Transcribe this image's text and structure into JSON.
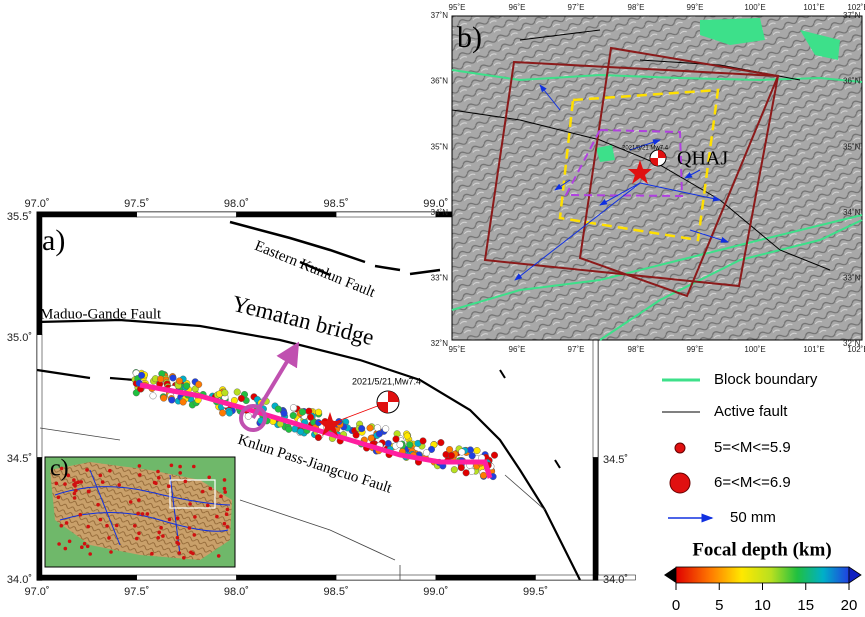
{
  "panel_a": {
    "label": "a)",
    "x_ticks": [
      "97.0˚",
      "97.5˚",
      "98.0˚",
      "98.5˚",
      "99.0˚",
      "99.5˚"
    ],
    "y_ticks_left": [
      "35.5˚",
      "35.0˚",
      "34.5˚",
      "34.0˚"
    ],
    "y_ticks_right": [
      "34.5˚",
      "34.0˚"
    ],
    "annotations": {
      "eastern_kunlun": "Eastern Kunlun Fault",
      "maduo_gande": "Maduo-Gande Fault",
      "bridge": "Yematan bridge",
      "event": "2021/5/21,Mw7.4",
      "knlun_pass": "Knlun Pass-Jiangcuo Fault"
    }
  },
  "panel_b": {
    "label": "b)",
    "x_ticks": [
      "95˚E",
      "96˚E",
      "97˚E",
      "98˚E",
      "99˚E",
      "100˚E",
      "101˚E",
      "102˚E"
    ],
    "y_ticks": [
      "37˚N",
      "36˚N",
      "35˚N",
      "34˚N",
      "33˚N",
      "32˚N"
    ],
    "station": "QHAJ",
    "event": "2021/5/21 Mw7.4"
  },
  "panel_c": {
    "label": "c)"
  },
  "legend": {
    "block_boundary": "Block boundary",
    "active_fault": "Active fault",
    "mag_small": "5=<M<=5.9",
    "mag_large": "6=<M<=6.9",
    "gps": "50 mm"
  },
  "colorbar": {
    "title": "Focal depth (km)",
    "range": [
      0,
      20
    ],
    "ticks": [
      0,
      5,
      10,
      15,
      20
    ]
  }
}
